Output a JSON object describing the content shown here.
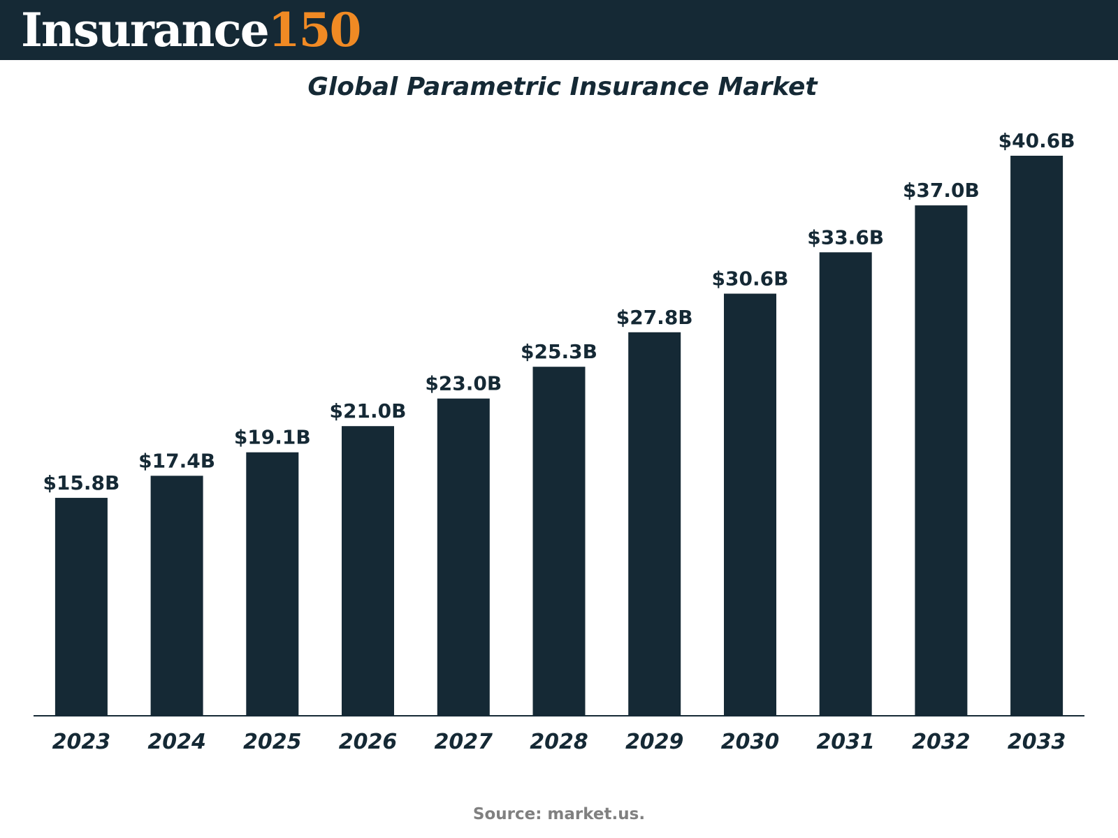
{
  "brand": {
    "word": "Insurance",
    "number": "150"
  },
  "colors": {
    "bar": "#152935",
    "accent": "#f08a24",
    "header_bg": "#152935",
    "source_text": "#808080"
  },
  "chart_data": {
    "type": "bar",
    "title": "Global Parametric Insurance Market",
    "categories": [
      "2023",
      "2024",
      "2025",
      "2026",
      "2027",
      "2028",
      "2029",
      "2030",
      "2031",
      "2032",
      "2033"
    ],
    "values": [
      15.8,
      17.4,
      19.1,
      21.0,
      23.0,
      25.3,
      27.8,
      30.6,
      33.6,
      37.0,
      40.6
    ],
    "data_labels": [
      "$15.8B",
      "$17.4B",
      "$19.1B",
      "$21.0B",
      "$23.0B",
      "$25.3B",
      "$27.8B",
      "$30.6B",
      "$33.6B",
      "$37.0B",
      "$40.6B"
    ],
    "xlabel": "",
    "ylabel": "",
    "ylim": [
      0,
      40.6
    ],
    "grid": false,
    "y_axis_shown": false
  },
  "source": "Source: market.us."
}
